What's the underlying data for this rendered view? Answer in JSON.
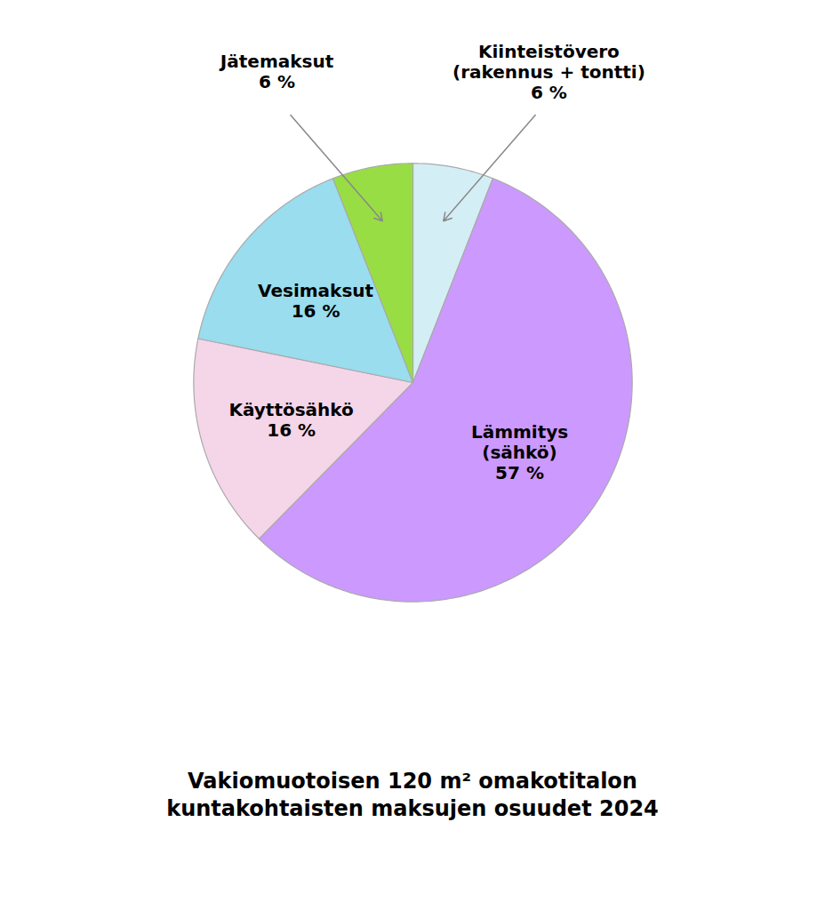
{
  "chart_data": {
    "type": "pie",
    "title": "Vakiomuotoisen 120 m² omakotitalon\nkuntakohtaisten maksujen osuudet 2024",
    "categories": [
      "Kiinteistövero\n(rakennus + tontti)\n6 %",
      "Lämmitys\n(sähkö)\n57 %",
      "Käyttösähkö\n16 %",
      "Vesimaksut\n16 %",
      "Jätemaksut\n6 %"
    ],
    "values": [
      6,
      57,
      16,
      16,
      6
    ],
    "colors": [
      "#d4eef5",
      "#cc99ff",
      "#f5d5e8",
      "#99ddee",
      "#99dd44"
    ]
  }
}
